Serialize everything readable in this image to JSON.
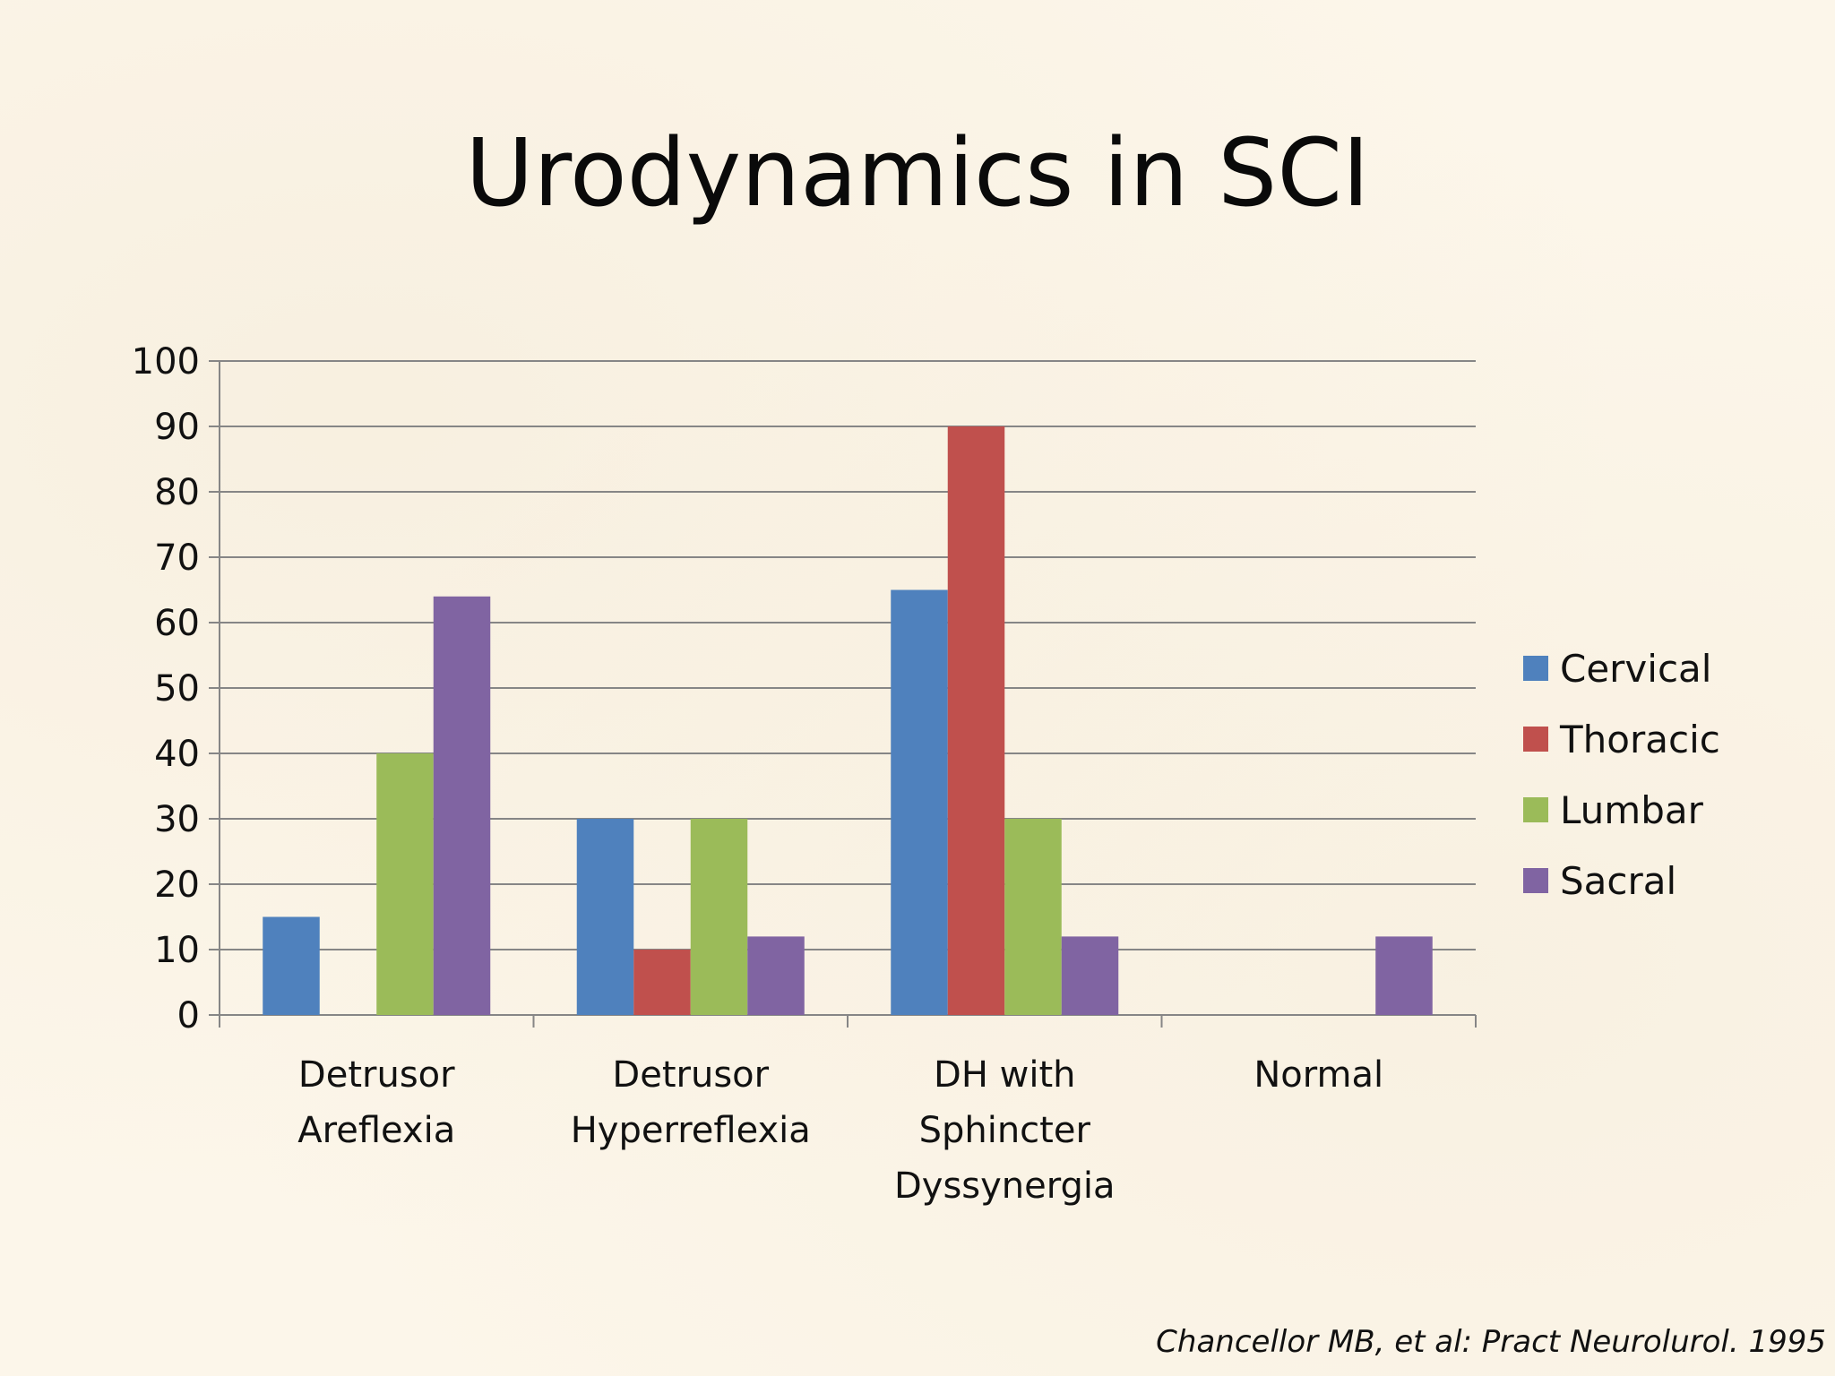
{
  "slide": {
    "title": "Urodynamics in SCI",
    "citation": "Chancellor MB, et al: Pract Neurolurol. 1995"
  },
  "chart_data": {
    "type": "bar",
    "categories": [
      [
        "Detrusor",
        "Areflexia"
      ],
      [
        "Detrusor",
        "Hyperreflexia"
      ],
      [
        "DH with",
        "Sphincter",
        "Dyssynergia"
      ],
      [
        "Normal"
      ]
    ],
    "series": [
      {
        "name": "Cervical",
        "color": "#4f81bd",
        "values": [
          15,
          30,
          65,
          0
        ]
      },
      {
        "name": "Thoracic",
        "color": "#c0504d",
        "values": [
          0,
          10,
          90,
          0
        ]
      },
      {
        "name": "Lumbar",
        "color": "#9bbb59",
        "values": [
          40,
          30,
          30,
          0
        ]
      },
      {
        "name": "Sacral",
        "color": "#8064a2",
        "values": [
          64,
          12,
          12,
          12
        ]
      }
    ],
    "yticks": [
      "0",
      "10",
      "20",
      "30",
      "40",
      "50",
      "60",
      "70",
      "80",
      "90",
      "100"
    ],
    "ylim": [
      0,
      100
    ],
    "grid": true,
    "legend": "right"
  }
}
